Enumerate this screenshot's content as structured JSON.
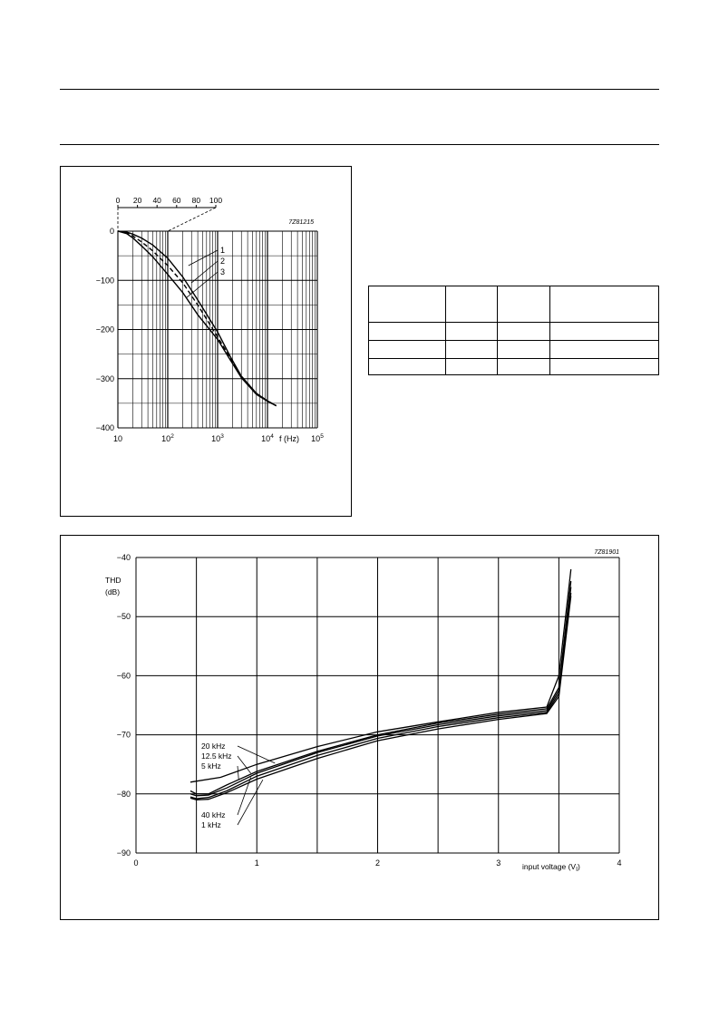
{
  "chart_data": [
    {
      "type": "line",
      "code": "7Z81215",
      "x_scale": "log",
      "xlim": [
        10,
        100000
      ],
      "ylim": [
        -400,
        0
      ],
      "y_ticks": [
        0,
        -100,
        -200,
        -300,
        -400
      ],
      "x_ticks": [
        {
          "value": 10,
          "base": "10",
          "exp": ""
        },
        {
          "value": 100,
          "base": "10",
          "exp": "2"
        },
        {
          "value": 1000,
          "base": "10",
          "exp": "3"
        },
        {
          "value": 10000,
          "base": "10",
          "exp": "4"
        },
        {
          "value": 100000,
          "base": "10",
          "exp": "5"
        }
      ],
      "xlabel": "f (Hz)",
      "ylabel": "",
      "grid": true,
      "secondary_axis_ticks": [
        "0",
        "20",
        "40",
        "60",
        "80",
        "100"
      ],
      "series": [
        {
          "name": "1",
          "style": "solid",
          "x": [
            10,
            15,
            20,
            30,
            50,
            100,
            200,
            400,
            1000,
            1800,
            3000,
            6000,
            10000,
            15000
          ],
          "y": [
            0,
            -2,
            -6,
            -14,
            -28,
            -55,
            -93,
            -140,
            -205,
            -255,
            -295,
            -330,
            -345,
            -355
          ]
        },
        {
          "name": "2",
          "style": "dashed",
          "x": [
            10,
            15,
            20,
            30,
            50,
            100,
            200,
            400,
            1000,
            1800,
            3000,
            6000,
            10000,
            15000
          ],
          "y": [
            0,
            -3,
            -10,
            -22,
            -40,
            -70,
            -105,
            -150,
            -215,
            -258,
            -295,
            -330,
            -345,
            -355
          ]
        },
        {
          "name": "3",
          "style": "solid",
          "x": [
            10,
            15,
            20,
            30,
            50,
            100,
            200,
            400,
            1000,
            1800,
            3000,
            6000,
            10000,
            15000
          ],
          "y": [
            0,
            -5,
            -14,
            -30,
            -52,
            -88,
            -125,
            -170,
            -220,
            -262,
            -298,
            -332,
            -346,
            -355
          ]
        }
      ]
    },
    {
      "type": "line",
      "code": "7Z81901",
      "xlim": [
        0,
        4
      ],
      "ylim": [
        -90,
        -40
      ],
      "x_ticks": [
        "0",
        "1",
        "2",
        "3",
        "4"
      ],
      "y_ticks": [
        "-40",
        "-50",
        "-60",
        "-70",
        "-80",
        "-90"
      ],
      "ylabel_line1": "THD",
      "ylabel_line2": "(dB)",
      "xlabel_main": "input voltage (V",
      "xlabel_sub": "I",
      "xlabel_end": ")",
      "grid": true,
      "series": [
        {
          "name": "20 kHz",
          "x": [
            0.45,
            0.7,
            1.0,
            1.5,
            2.0,
            2.5,
            3.0,
            3.4,
            3.5,
            3.6
          ],
          "y": [
            -78,
            -77.2,
            -75,
            -72,
            -69.5,
            -67.8,
            -66.2,
            -65.3,
            -60,
            -42
          ]
        },
        {
          "name": "12.5 kHz",
          "x": [
            0.45,
            0.5,
            0.6,
            0.75,
            1.0,
            1.5,
            2.0,
            2.5,
            3.0,
            3.4,
            3.5,
            3.6
          ],
          "y": [
            -79.5,
            -80,
            -80,
            -78.5,
            -76.2,
            -72.8,
            -70,
            -68,
            -66.5,
            -65.6,
            -62,
            -44
          ]
        },
        {
          "name": "5 kHz",
          "x": [
            0.45,
            0.5,
            0.6,
            0.75,
            1.0,
            1.5,
            2.0,
            2.5,
            3.0,
            3.4,
            3.5,
            3.6
          ],
          "y": [
            -80,
            -80.3,
            -80.2,
            -79,
            -76.5,
            -73,
            -70.2,
            -68.3,
            -66.8,
            -65.9,
            -62.5,
            -45
          ]
        },
        {
          "name": "40 kHz",
          "x": [
            0.45,
            0.5,
            0.6,
            0.75,
            1.0,
            1.5,
            2.0,
            2.5,
            3.0,
            3.4,
            3.5,
            3.6
          ],
          "y": [
            -80.5,
            -80.8,
            -80.6,
            -79.5,
            -77,
            -73.5,
            -70.6,
            -68.6,
            -67.1,
            -66.2,
            -63,
            -46
          ]
        },
        {
          "name": "1 kHz",
          "x": [
            0.45,
            0.5,
            0.6,
            0.75,
            1.0,
            1.5,
            2.0,
            2.5,
            3.0,
            3.4,
            3.5,
            3.6
          ],
          "y": [
            -80.7,
            -81,
            -80.9,
            -79.8,
            -77.5,
            -74,
            -71,
            -69,
            -67.4,
            -66.4,
            -63.5,
            -46.5
          ]
        }
      ],
      "label_order": [
        "20 kHz",
        "12.5 kHz",
        "5 kHz",
        "40 kHz",
        "1 kHz"
      ]
    }
  ]
}
